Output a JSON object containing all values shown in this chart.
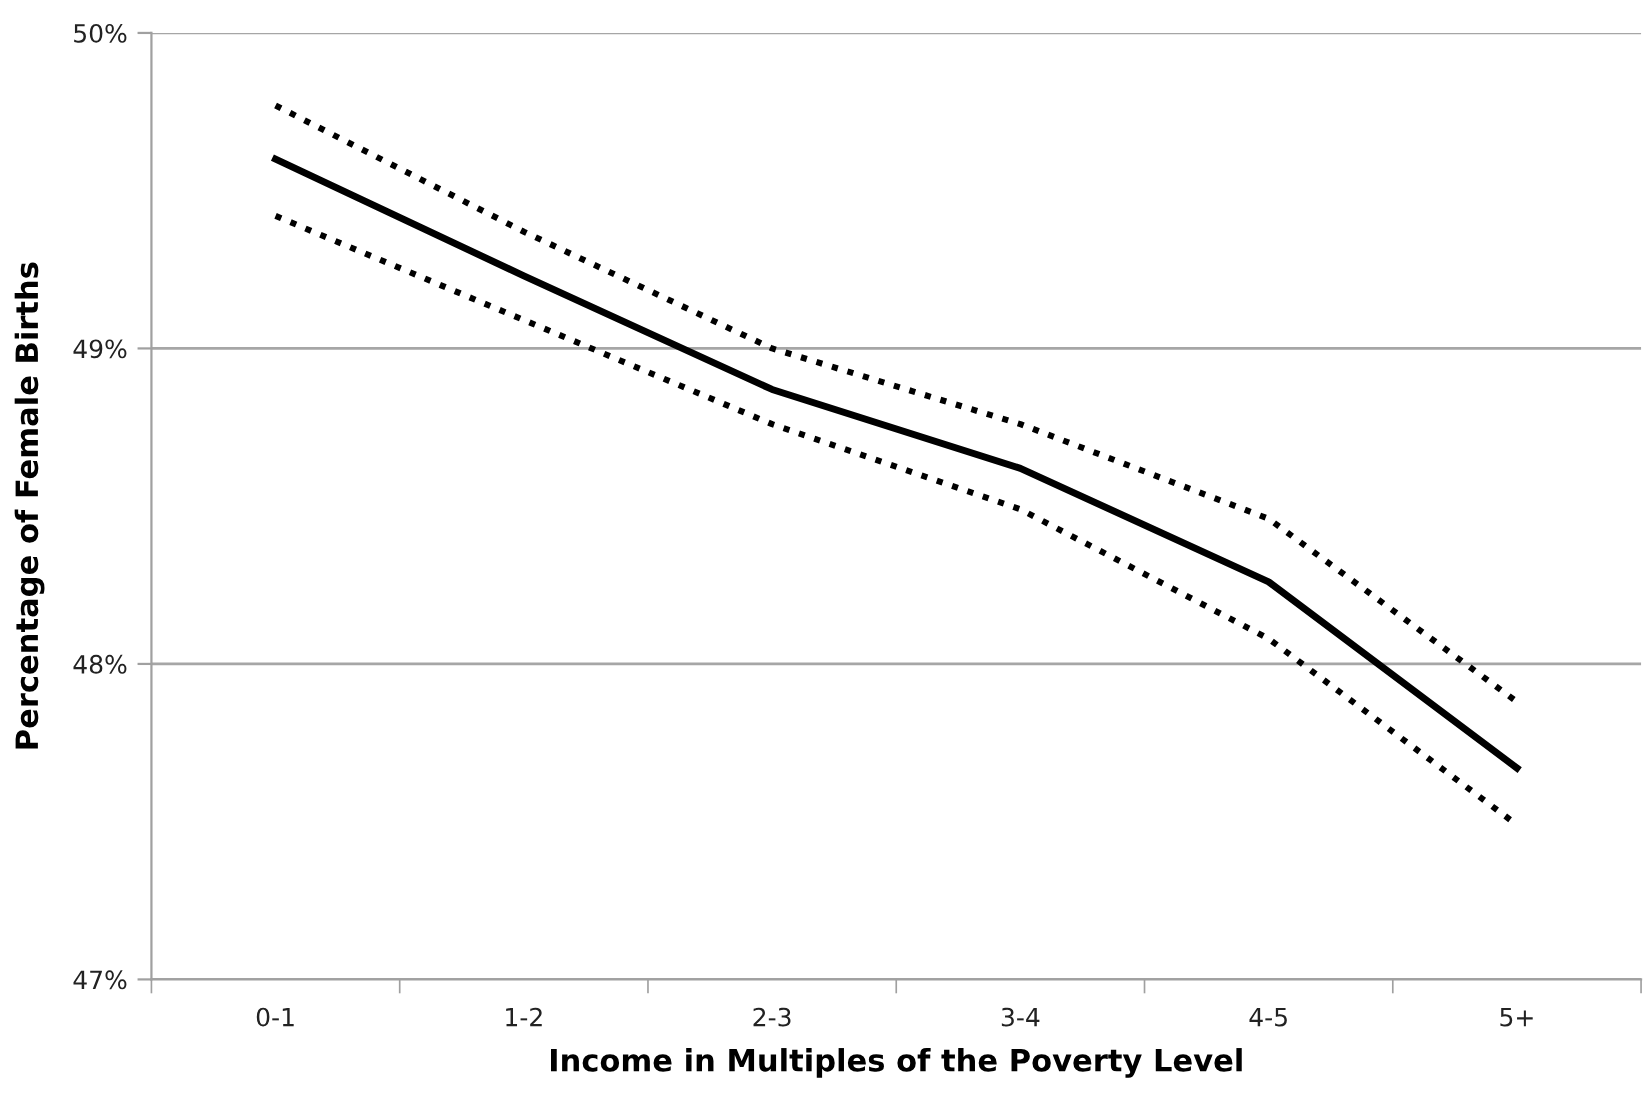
{
  "chart_data": {
    "type": "line",
    "xlabel": "Income in Multiples of the Poverty Level",
    "ylabel": "Percentage of Female Births",
    "categories": [
      "0-1",
      "1-2",
      "2-3",
      "3-4",
      "4-5",
      "5+"
    ],
    "series": [
      {
        "color": "#000000",
        "line_style": "dotted",
        "values": [
          49.77,
          49.37,
          49.0,
          48.76,
          48.46,
          47.88
        ]
      },
      {
        "color": "#000000",
        "line_style": "solid",
        "values": [
          49.6,
          49.23,
          48.87,
          48.62,
          48.26,
          47.67
        ]
      },
      {
        "color": "#000000",
        "line_style": "dotted",
        "values": [
          49.42,
          49.09,
          48.76,
          48.49,
          48.08,
          47.49
        ]
      }
    ],
    "ylim": [
      47,
      50
    ],
    "yticks": [
      {
        "value": 47,
        "label": "47%"
      },
      {
        "value": 48,
        "label": "48%"
      },
      {
        "value": 49,
        "label": "49%"
      },
      {
        "value": 50,
        "label": "50%"
      }
    ],
    "grid": "y",
    "marker": "none"
  }
}
